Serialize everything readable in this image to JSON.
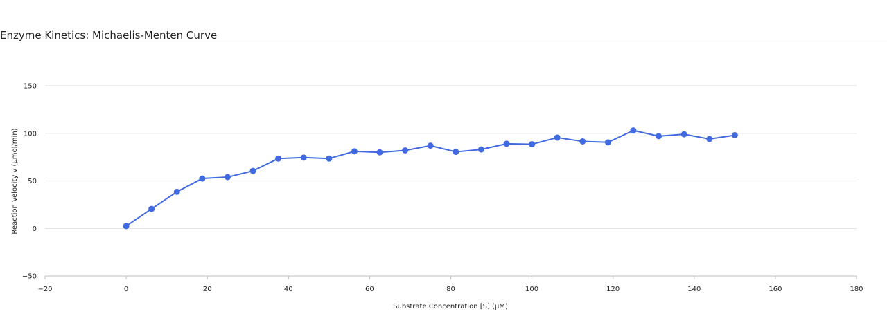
{
  "chart_data": {
    "type": "line",
    "title": "Enzyme Kinetics: Michaelis-Menten Curve",
    "xlabel": "Substrate Concentration [S] (µM)",
    "ylabel": "Reaction Velocity v (µmol/min)",
    "xlim": [
      -20,
      180
    ],
    "ylim": [
      -50,
      150
    ],
    "xticks": [
      -20,
      0,
      20,
      40,
      60,
      80,
      100,
      120,
      140,
      160,
      180
    ],
    "yticks": [
      -50,
      0,
      50,
      100,
      150
    ],
    "grid": "horizontal",
    "legend": "none",
    "series": [
      {
        "color": "#4169e1",
        "x": [
          0,
          6.25,
          12.5,
          18.75,
          25,
          31.25,
          37.5,
          43.75,
          50,
          56.25,
          62.5,
          68.75,
          75,
          81.25,
          87.5,
          93.75,
          100,
          106.25,
          112.5,
          118.75,
          125,
          131.25,
          137.5,
          143.75,
          150
        ],
        "y": [
          2.5,
          20.5,
          38.5,
          52.5,
          54,
          60.5,
          73.5,
          74.5,
          73.5,
          81,
          80,
          82,
          87,
          80.5,
          83,
          89,
          88.5,
          95.5,
          91.5,
          90.5,
          103,
          97,
          99,
          94,
          98
        ]
      }
    ]
  }
}
